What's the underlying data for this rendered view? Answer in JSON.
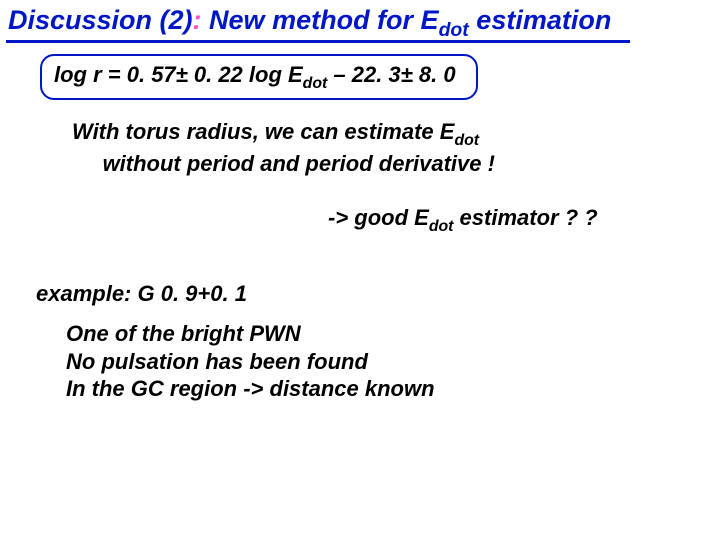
{
  "colors": {
    "blue": "#0017c6",
    "pink": "#ff4cd3",
    "text": "#000000",
    "background": "#ffffff"
  },
  "title": {
    "pre": "Discussion (2)",
    "sep": ": ",
    "post_a": "New method for E",
    "post_sub": "dot",
    "post_b": " estimation"
  },
  "formula": {
    "a": "log r = 0. 57± 0. 22 log E",
    "sub": "dot",
    "b": " – 22. 3± 8. 0"
  },
  "body1": {
    "l1a": "With torus radius, we can estimate E",
    "l1sub": "dot",
    "l2": "without period and period derivative !"
  },
  "arrow": {
    "a": "-> good E",
    "sub": "dot",
    "b": " estimator ? ?"
  },
  "example": "example: G 0. 9+0. 1",
  "body2": {
    "l1": "One of the bright PWN",
    "l2": "No pulsation has been found",
    "l3": "In the GC region -> distance known"
  }
}
